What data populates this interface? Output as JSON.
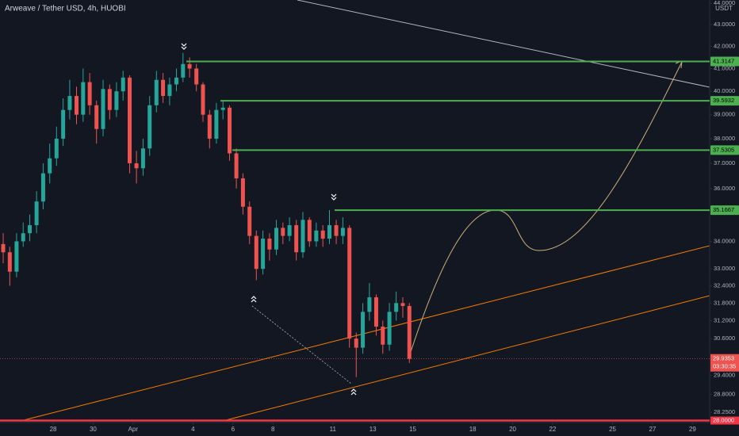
{
  "chart_data": {
    "type": "candlestick",
    "title": "Arweave / Tether USD, 4h, HUOBI",
    "unit": "USDT",
    "log_scale": true,
    "grid": false,
    "up_color": "#26a69a",
    "down_color": "#ef5350",
    "x": [
      25.5,
      25.83,
      26.17,
      26.5,
      26.83,
      27.17,
      27.5,
      27.83,
      28.17,
      28.5,
      28.83,
      29.17,
      29.5,
      29.83,
      30.17,
      30.5,
      30.83,
      31.17,
      31.5,
      31.83,
      32.17,
      32.5,
      32.83,
      33.17,
      33.5,
      33.83,
      34.17,
      34.5,
      34.83,
      35.17,
      35.5,
      35.83,
      36.17,
      36.5,
      36.83,
      37.17,
      37.5,
      37.83,
      38.17,
      38.5,
      38.83,
      39.17,
      39.5,
      39.83,
      40.17,
      40.5,
      40.83,
      41.17,
      41.5,
      41.83,
      42.17,
      42.5,
      42.83,
      43.17,
      43.5,
      43.83,
      44.17,
      44.5,
      44.83,
      45.17,
      45.5,
      45.83
    ],
    "open": [
      33.9,
      33.6,
      32.9,
      34.0,
      34.3,
      34.6,
      35.5,
      36.6,
      37.2,
      38.0,
      39.2,
      39.8,
      39.0,
      40.4,
      39.4,
      38.4,
      40.1,
      39.2,
      40.0,
      40.6,
      37.0,
      36.8,
      37.6,
      39.4,
      40.5,
      39.8,
      40.3,
      40.6,
      41.2,
      41.0,
      40.3,
      39.0,
      38.0,
      39.2,
      39.3,
      37.4,
      36.4,
      35.3,
      34.2,
      33.0,
      34.1,
      33.7,
      34.5,
      34.2,
      34.6,
      33.6,
      34.8,
      34.0,
      34.4,
      34.1,
      34.6,
      34.2,
      34.5,
      30.6,
      30.3,
      31.5,
      32.0,
      31.0,
      30.4,
      31.5,
      31.8,
      31.7
    ],
    "high": [
      34.3,
      33.8,
      34.3,
      34.7,
      35.0,
      35.9,
      37.0,
      37.8,
      38.5,
      39.7,
      40.5,
      40.2,
      41.0,
      40.8,
      39.6,
      40.5,
      40.3,
      40.4,
      40.9,
      40.7,
      37.5,
      38.0,
      39.8,
      40.9,
      40.8,
      40.6,
      41.0,
      41.7,
      41.5,
      41.2,
      40.4,
      39.2,
      39.5,
      39.6,
      39.4,
      37.6,
      36.6,
      35.5,
      34.4,
      34.4,
      34.3,
      34.8,
      34.7,
      34.9,
      34.8,
      35.1,
      34.9,
      34.7,
      34.6,
      35.17,
      34.8,
      34.9,
      34.6,
      30.8,
      31.8,
      32.5,
      32.1,
      31.2,
      31.8,
      32.2,
      32.0,
      31.8
    ],
    "low": [
      33.2,
      32.4,
      32.7,
      33.8,
      34.0,
      34.3,
      35.2,
      36.2,
      36.9,
      37.7,
      38.8,
      38.6,
      38.7,
      39.0,
      37.8,
      38.1,
      38.8,
      38.9,
      39.6,
      36.6,
      36.2,
      36.5,
      37.3,
      39.1,
      39.5,
      39.4,
      40.0,
      40.4,
      40.6,
      40.0,
      38.7,
      37.6,
      37.8,
      38.8,
      37.1,
      36.0,
      35.0,
      33.9,
      32.6,
      32.8,
      33.3,
      33.5,
      33.9,
      34.0,
      33.3,
      33.4,
      33.8,
      33.8,
      33.8,
      33.9,
      33.9,
      33.9,
      30.3,
      29.35,
      30.1,
      31.2,
      30.7,
      30.1,
      30.2,
      31.2,
      31.3,
      29.8
    ],
    "close": [
      33.6,
      32.9,
      34.0,
      34.3,
      34.6,
      35.5,
      36.6,
      37.2,
      38.0,
      39.2,
      39.8,
      39.0,
      40.4,
      39.4,
      38.4,
      40.1,
      39.2,
      40.0,
      40.6,
      37.0,
      36.8,
      37.6,
      39.4,
      40.5,
      39.8,
      40.3,
      40.6,
      41.2,
      41.0,
      40.3,
      39.0,
      38.0,
      39.2,
      39.3,
      37.4,
      36.4,
      35.3,
      34.2,
      33.0,
      34.1,
      33.7,
      34.5,
      34.2,
      34.6,
      33.6,
      34.8,
      34.0,
      34.4,
      34.1,
      34.6,
      34.2,
      34.5,
      30.6,
      30.3,
      31.5,
      32.0,
      31.0,
      30.4,
      31.5,
      31.8,
      31.7,
      29.9353
    ],
    "xlim": [
      25.34,
      60.86
    ],
    "ylim": [
      27.94,
      44.16
    ],
    "xticks": [
      {
        "value": 28,
        "label": "28"
      },
      {
        "value": 30,
        "label": "30"
      },
      {
        "value": 32,
        "label": "Apr"
      },
      {
        "value": 35,
        "label": "4"
      },
      {
        "value": 37,
        "label": "6"
      },
      {
        "value": 39,
        "label": "8"
      },
      {
        "value": 42,
        "label": "11"
      },
      {
        "value": 44,
        "label": "13"
      },
      {
        "value": 46,
        "label": "15"
      },
      {
        "value": 49,
        "label": "18"
      },
      {
        "value": 51,
        "label": "20"
      },
      {
        "value": 53,
        "label": "22"
      },
      {
        "value": 56,
        "label": "25"
      },
      {
        "value": 58,
        "label": "27"
      },
      {
        "value": 60,
        "label": "29"
      }
    ],
    "yticks": [
      {
        "value": 44,
        "label": "44.0000"
      },
      {
        "value": 43,
        "label": "43.0000"
      },
      {
        "value": 42,
        "label": "42.0000"
      },
      {
        "value": 41,
        "label": "41.0000"
      },
      {
        "value": 40,
        "label": "40.0000"
      },
      {
        "value": 39,
        "label": "39.0000"
      },
      {
        "value": 38,
        "label": "38.0000"
      },
      {
        "value": 37,
        "label": "37.0000"
      },
      {
        "value": 36,
        "label": "36.0000"
      },
      {
        "value": 34,
        "label": "34.0000"
      },
      {
        "value": 33,
        "label": "33.0000"
      },
      {
        "value": 32.4,
        "label": "32.4000"
      },
      {
        "value": 31.8,
        "label": "31.8000"
      },
      {
        "value": 31.2,
        "label": "31.2000"
      },
      {
        "value": 30.6,
        "label": "30.6000"
      },
      {
        "value": 29.4,
        "label": "29.4000"
      },
      {
        "value": 28.8,
        "label": "28.8000"
      },
      {
        "value": 28.25,
        "label": "28.2500"
      }
    ],
    "levels": [
      41.3147,
      39.5932,
      37.5305,
      35.1667
    ],
    "level_color": "#4caf50",
    "support": {
      "value": 28,
      "label": "28.0000",
      "color": "#f23645"
    },
    "last_price": 29.9353,
    "countdown": "03:30:35"
  }
}
